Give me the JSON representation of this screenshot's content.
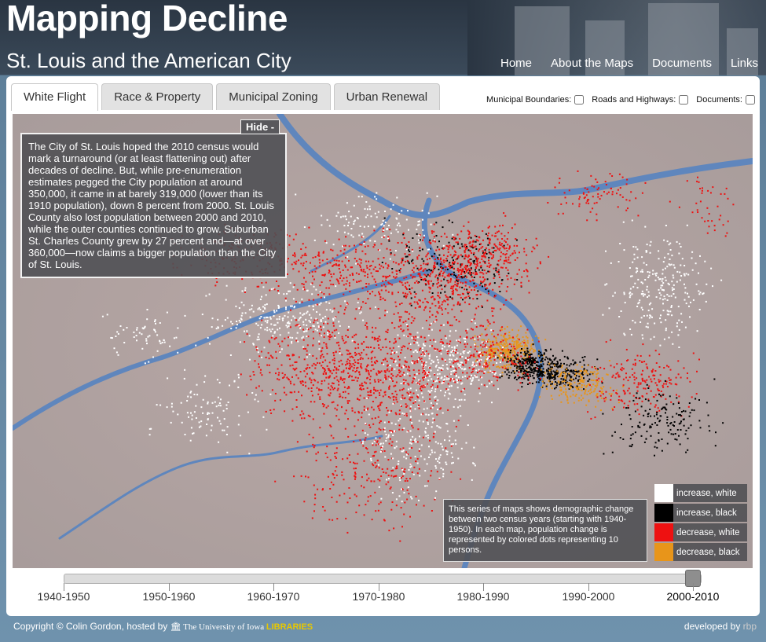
{
  "header": {
    "title": "Mapping Decline",
    "subtitle": "St. Louis and the American City"
  },
  "nav": [
    "Home",
    "About the Maps",
    "Documents",
    "Links"
  ],
  "tabs": [
    "White Flight",
    "Race & Property",
    "Municipal Zoning",
    "Urban Renewal"
  ],
  "active_tab": "White Flight",
  "options": {
    "municipal": "Municipal Boundaries:",
    "roads": "Roads and Highways:",
    "documents": "Documents:"
  },
  "map": {
    "hide_label": "Hide -",
    "info_text": "The City of St. Louis hoped the 2010 census would mark a turnaround (or at least flattening out) after decades of decline. But, while pre-enumeration estimates pegged the City population at around 350,000, it came in at barely 319,000 (lower than its 1910 population), down 8 percent from 2000. St. Louis County also lost population between 2000 and 2010, while the outer counties continued to grow. Suburban St. Charles County grew by 27 percent and—at over 360,000—now claims a bigger population than the City of St. Louis.",
    "note_text": "This series of maps shows demographic change between two census years (starting with 1940-1950). In each map, population change is represented by colored dots representing 10 persons.",
    "legend": [
      {
        "label": "increase, white",
        "color": "#ffffff"
      },
      {
        "label": "increase, black",
        "color": "#000000"
      },
      {
        "label": "decrease, white",
        "color": "#ee1111"
      },
      {
        "label": "decrease, black",
        "color": "#e8951a"
      }
    ]
  },
  "timeline": {
    "decades": [
      "1940-1950",
      "1950-1960",
      "1960-1970",
      "1970-1980",
      "1980-1990",
      "1990-2000",
      "2000-2010"
    ],
    "selected": "2000-2010"
  },
  "footer": {
    "copyright": "Copyright © Colin Gordon, hosted by",
    "library_prefix": "The University of Iowa",
    "library_name": "LIBRARIES",
    "developed": "developed by",
    "developer": "rbp"
  }
}
